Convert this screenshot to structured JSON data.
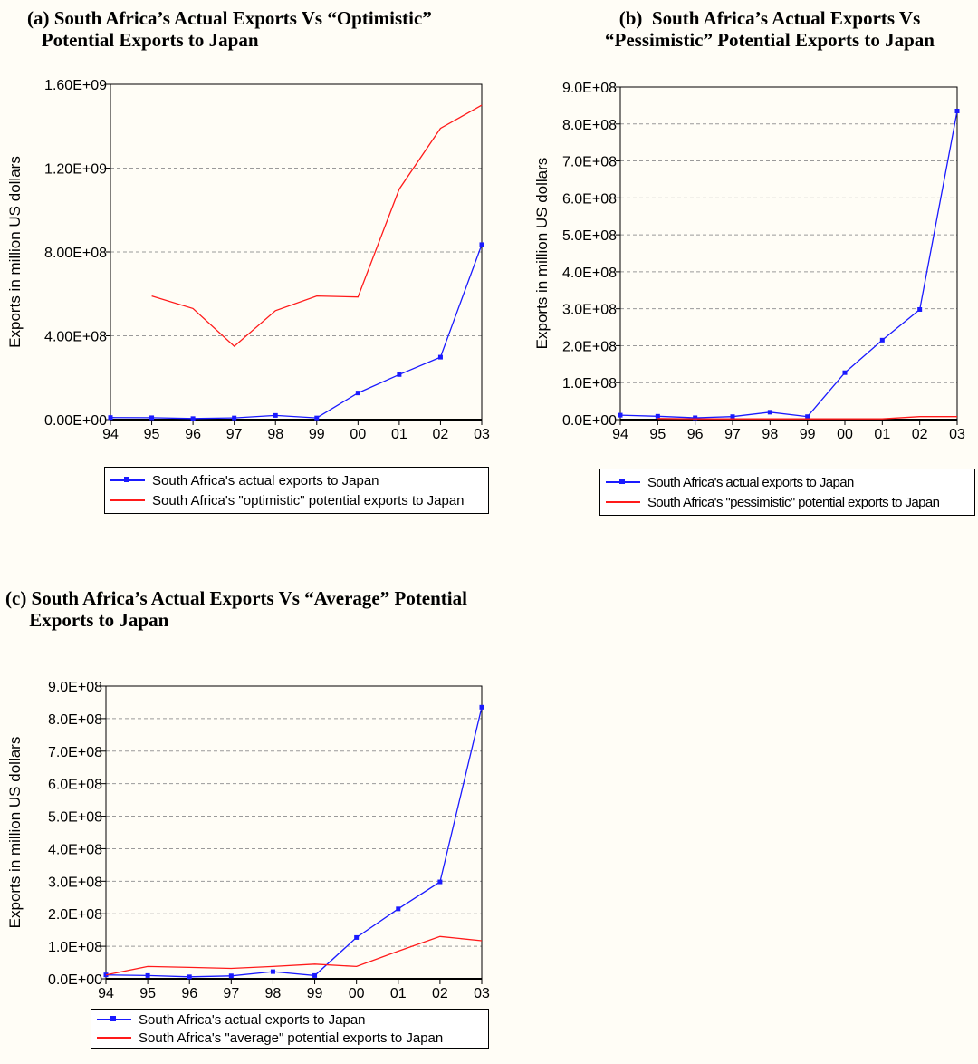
{
  "colors": {
    "actual": "#1a1aff",
    "potential": "#ff1a1a",
    "grid": "#9a9a9a"
  },
  "chart_data": [
    {
      "type": "line",
      "title_lines": [
        "(a) South Africa’s Actual Exports Vs “Optimistic”",
        "   Potential Exports to Japan"
      ],
      "xlabel": "",
      "ylabel": "Exports in million US dollars",
      "x": [
        "94",
        "95",
        "96",
        "97",
        "98",
        "99",
        "00",
        "01",
        "02",
        "03"
      ],
      "ylim": [
        0,
        1600000000
      ],
      "yticks": [
        0,
        400000000,
        800000000,
        1200000000,
        1600000000
      ],
      "ytick_labels": [
        "0.00E+00",
        "4.00E+08",
        "8.00E+08",
        "1.20E+09",
        "1.60E+09"
      ],
      "grid": true,
      "legend_position": "bottom",
      "series": [
        {
          "name": "South Africa's actual exports to Japan",
          "color": "#1a1aff",
          "markers": true,
          "values": [
            10000000,
            9000000,
            5000000,
            8000000,
            20000000,
            8000000,
            127000000,
            215000000,
            298000000,
            835000000
          ]
        },
        {
          "name": "South Africa's \"optimistic\" potential exports to Japan",
          "color": "#ff1a1a",
          "markers": false,
          "values": [
            null,
            590000000,
            530000000,
            350000000,
            520000000,
            590000000,
            585000000,
            1100000000,
            1390000000,
            1500000000
          ]
        }
      ]
    },
    {
      "type": "line",
      "title_lines": [
        "(b)  South Africa’s Actual Exports Vs",
        "“Pessimistic” Potential Exports to Japan"
      ],
      "xlabel": "",
      "ylabel": "Exports in million US dollars",
      "x": [
        "94",
        "95",
        "96",
        "97",
        "98",
        "99",
        "00",
        "01",
        "02",
        "03"
      ],
      "ylim": [
        0,
        900000000
      ],
      "yticks": [
        0,
        100000000,
        200000000,
        300000000,
        400000000,
        500000000,
        600000000,
        700000000,
        800000000,
        900000000
      ],
      "ytick_labels": [
        "0.0E+00",
        "1.0E+08",
        "2.0E+08",
        "3.0E+08",
        "4.0E+08",
        "5.0E+08",
        "6.0E+08",
        "7.0E+08",
        "8.0E+08",
        "9.0E+08"
      ],
      "grid": true,
      "legend_position": "bottom",
      "series": [
        {
          "name": "South Africa's actual exports to Japan",
          "color": "#1a1aff",
          "markers": true,
          "values": [
            12000000,
            9000000,
            5000000,
            8000000,
            20000000,
            8000000,
            127000000,
            215000000,
            298000000,
            835000000
          ]
        },
        {
          "name": "South Africa's \"pessimistic\" potential exports to Japan",
          "color": "#ff1a1a",
          "markers": false,
          "values": [
            null,
            3000000,
            2000000,
            2000000,
            2000000,
            2000000,
            2000000,
            2000000,
            8000000,
            8000000
          ]
        }
      ]
    },
    {
      "type": "line",
      "title_lines": [
        "(c) South Africa’s Actual Exports Vs “Average” Potential",
        "     Exports to Japan"
      ],
      "xlabel": "",
      "ylabel": "Exports in million US dollars",
      "x": [
        "94",
        "95",
        "96",
        "97",
        "98",
        "99",
        "00",
        "01",
        "02",
        "03"
      ],
      "ylim": [
        0,
        900000000
      ],
      "yticks": [
        0,
        100000000,
        200000000,
        300000000,
        400000000,
        500000000,
        600000000,
        700000000,
        800000000,
        900000000
      ],
      "ytick_labels": [
        "0.0E+00",
        "1.0E+08",
        "2.0E+08",
        "3.0E+08",
        "4.0E+08",
        "5.0E+08",
        "6.0E+08",
        "7.0E+08",
        "8.0E+08",
        "9.0E+08"
      ],
      "grid": true,
      "legend_position": "bottom",
      "series": [
        {
          "name": "South Africa's actual exports to Japan",
          "color": "#1a1aff",
          "markers": true,
          "values": [
            12000000,
            10000000,
            6000000,
            9000000,
            22000000,
            10000000,
            127000000,
            215000000,
            298000000,
            835000000
          ]
        },
        {
          "name": "South Africa's \"average\" potential exports to Japan",
          "color": "#ff1a1a",
          "markers": false,
          "values": [
            12000000,
            38000000,
            35000000,
            32000000,
            38000000,
            45000000,
            38000000,
            85000000,
            130000000,
            117000000
          ]
        }
      ]
    }
  ]
}
